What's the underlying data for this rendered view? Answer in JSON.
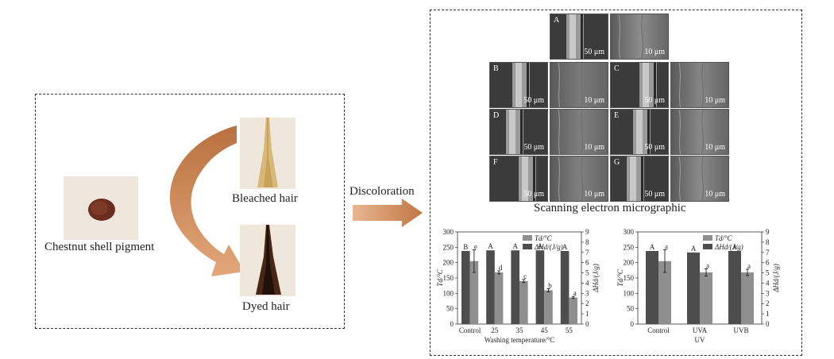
{
  "left_panel": {
    "pigment_label": "Chestnut shell pigment",
    "bleached_label": "Bleached hair",
    "dyed_label": "Dyed hair"
  },
  "discoloration_label": "Discoloration",
  "sem": {
    "caption": "Scanning electron micrographic",
    "panels": [
      {
        "letter": "A",
        "scale_low": "50 μm",
        "scale_high": "10 μm"
      },
      {
        "letter": "B",
        "scale_low": "50 μm",
        "scale_high": "10 μm"
      },
      {
        "letter": "C",
        "scale_low": "50 μm",
        "scale_high": "10 μm"
      },
      {
        "letter": "D",
        "scale_low": "50 μm",
        "scale_high": "10 μm"
      },
      {
        "letter": "E",
        "scale_low": "50 μm",
        "scale_high": "10 μm"
      },
      {
        "letter": "F",
        "scale_low": "50 μm",
        "scale_high": "10 μm"
      },
      {
        "letter": "G",
        "scale_low": "50 μm",
        "scale_high": "10 μm"
      }
    ]
  },
  "chart_data": [
    {
      "type": "bar",
      "categories": [
        "Control",
        "25",
        "35",
        "45",
        "55"
      ],
      "xlabel": "Washing temperature/°C",
      "ylabel_left": "Td/°C",
      "ylabel_right": "ΔHd/(J/g)",
      "ylim": [
        0,
        300
      ],
      "yticks": [
        0,
        50,
        100,
        150,
        200,
        250,
        300
      ],
      "y2lim": [
        0,
        9
      ],
      "y2ticks": [
        0,
        1,
        2,
        3,
        4,
        5,
        6,
        7,
        8,
        9
      ],
      "legend": "top-right",
      "series": [
        {
          "name": "Td/°C",
          "axis": "left",
          "color": "#4d4d4d",
          "values": [
            238,
            240,
            240,
            240,
            238
          ],
          "labels": [
            "B",
            "A",
            "A",
            "A",
            "A"
          ]
        },
        {
          "name": "ΔHd/(J/g)",
          "axis": "right",
          "color": "#8f8f8f",
          "values": [
            6.15,
            5.05,
            4.2,
            3.3,
            2.6
          ],
          "errors": [
            1.1,
            0.15,
            0.15,
            0.15,
            0.1
          ],
          "labels": [
            "e",
            "d",
            "c",
            "b",
            "a"
          ]
        }
      ]
    },
    {
      "type": "bar",
      "categories": [
        "Control",
        "UVA",
        "UVB"
      ],
      "xlabel": "UV",
      "ylabel_left": "Td/°C",
      "ylabel_right": "ΔHd/(J/g)",
      "ylim": [
        0,
        300
      ],
      "yticks": [
        0,
        50,
        100,
        150,
        200,
        250,
        300
      ],
      "y2lim": [
        0,
        9
      ],
      "y2ticks": [
        0,
        1,
        2,
        3,
        4,
        5,
        6,
        7,
        8,
        9
      ],
      "legend": "top-right",
      "series": [
        {
          "name": "Td/°C",
          "axis": "left",
          "color": "#4d4d4d",
          "values": [
            238,
            233,
            238
          ],
          "labels": [
            "A",
            "A",
            "A"
          ]
        },
        {
          "name": "ΔHd/(J/g)",
          "axis": "right",
          "color": "#8f8f8f",
          "values": [
            6.15,
            5.05,
            5.05
          ],
          "errors": [
            1.1,
            0.35,
            0.3
          ],
          "labels": [
            "a",
            "a",
            "a"
          ]
        }
      ]
    }
  ]
}
